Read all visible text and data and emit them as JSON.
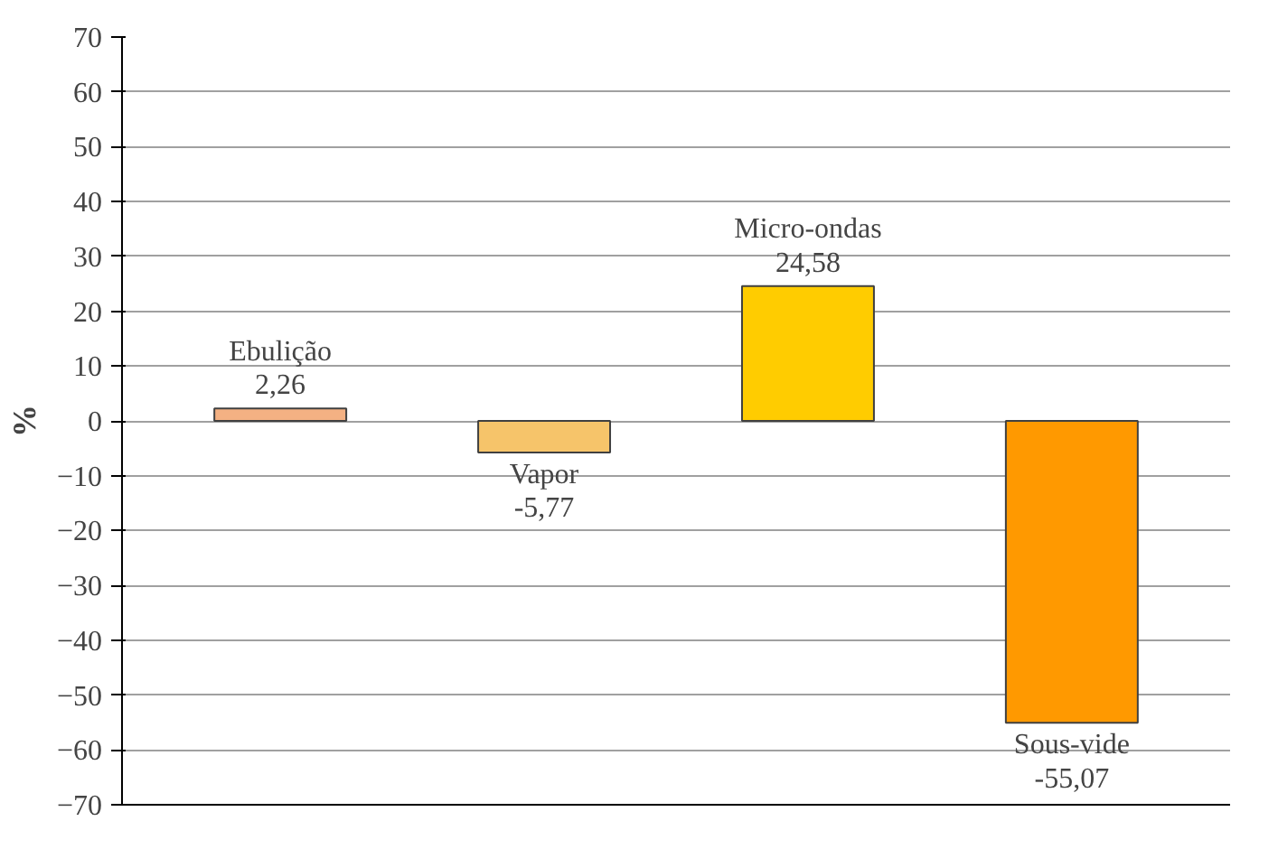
{
  "chart_data": {
    "type": "bar",
    "ylabel": "%",
    "categories": [
      "Ebulição",
      "Vapor",
      "Micro-ondas",
      "Sous-vide"
    ],
    "values": [
      2.26,
      -5.77,
      24.58,
      -55.07
    ],
    "value_labels": [
      "2,26",
      "-5,77",
      "24,58",
      "-55,07"
    ],
    "colors": [
      "#f4b183",
      "#f6c46a",
      "#ffcc00",
      "#ff9900"
    ],
    "ylim": [
      -70,
      70
    ],
    "yticks": [
      -70,
      -60,
      -50,
      -40,
      -30,
      -20,
      -10,
      0,
      10,
      20,
      30,
      40,
      50,
      60,
      70
    ],
    "grid": "y",
    "tick_labels": "y"
  }
}
